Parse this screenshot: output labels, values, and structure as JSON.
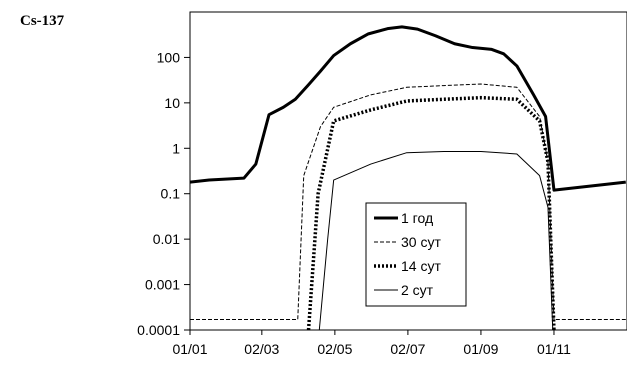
{
  "chart_data": {
    "type": "line",
    "title": "Cs-137",
    "xlabel": "",
    "ylabel": "",
    "x_scale": "date",
    "y_scale": "log",
    "ylim": [
      0.0001,
      1000
    ],
    "xlim": [
      "01/01",
      "31/12"
    ],
    "grid": false,
    "legend_position": "center-bottom",
    "x_ticks": [
      "01/01",
      "02/03",
      "02/05",
      "02/07",
      "01/09",
      "01/11"
    ],
    "y_ticks": [
      "0.0001",
      "0.001",
      "0.01",
      "0.1",
      "1",
      "10",
      "100"
    ],
    "series": [
      {
        "name": "1 год",
        "style": "thick-solid",
        "points": [
          [
            "01/01",
            0.18
          ],
          [
            "17/01",
            0.2
          ],
          [
            "15/02",
            0.22
          ],
          [
            "25/02",
            0.45
          ],
          [
            "08/03",
            5.5
          ],
          [
            "20/03",
            8
          ],
          [
            "30/03",
            12
          ],
          [
            "10/04",
            25
          ],
          [
            "20/04",
            50
          ],
          [
            "01/05",
            110
          ],
          [
            "15/05",
            200
          ],
          [
            "30/05",
            330
          ],
          [
            "15/06",
            430
          ],
          [
            "27/06",
            470
          ],
          [
            "10/07",
            420
          ],
          [
            "25/07",
            300
          ],
          [
            "10/08",
            200
          ],
          [
            "25/08",
            165
          ],
          [
            "10/09",
            150
          ],
          [
            "20/09",
            120
          ],
          [
            "01/10",
            65
          ],
          [
            "15/10",
            15
          ],
          [
            "25/10",
            5
          ],
          [
            "01/11",
            0.12
          ],
          [
            "31/12",
            0.18
          ]
        ]
      },
      {
        "name": "30 сут",
        "style": "thin-dashed",
        "points": [
          [
            "01/01",
            0.00017
          ],
          [
            "01/04",
            0.00017
          ],
          [
            "06/04",
            0.25
          ],
          [
            "20/04",
            3
          ],
          [
            "01/05",
            8
          ],
          [
            "01/06",
            15
          ],
          [
            "01/07",
            22
          ],
          [
            "01/08",
            24
          ],
          [
            "01/09",
            26
          ],
          [
            "01/10",
            22
          ],
          [
            "20/10",
            5
          ],
          [
            "27/10",
            0.5
          ],
          [
            "01/11",
            0.00017
          ],
          [
            "31/12",
            0.00017
          ]
        ]
      },
      {
        "name": "14 сут",
        "style": "thick-dotted",
        "points": [
          [
            "10/04",
            0.0001
          ],
          [
            "18/04",
            0.1
          ],
          [
            "01/05",
            4
          ],
          [
            "01/06",
            7
          ],
          [
            "01/07",
            11
          ],
          [
            "01/08",
            12
          ],
          [
            "01/09",
            13
          ],
          [
            "01/10",
            12
          ],
          [
            "20/10",
            4
          ],
          [
            "27/10",
            0.5
          ],
          [
            "01/11",
            0.0001
          ]
        ]
      },
      {
        "name": "2 сут",
        "style": "thin-solid",
        "points": [
          [
            "19/04",
            0.0001
          ],
          [
            "26/04",
            0.01
          ],
          [
            "01/05",
            0.2
          ],
          [
            "01/06",
            0.45
          ],
          [
            "01/07",
            0.8
          ],
          [
            "01/08",
            0.85
          ],
          [
            "01/09",
            0.85
          ],
          [
            "01/10",
            0.75
          ],
          [
            "20/10",
            0.25
          ],
          [
            "27/10",
            0.05
          ],
          [
            "31/10",
            0.0001
          ]
        ]
      }
    ]
  }
}
